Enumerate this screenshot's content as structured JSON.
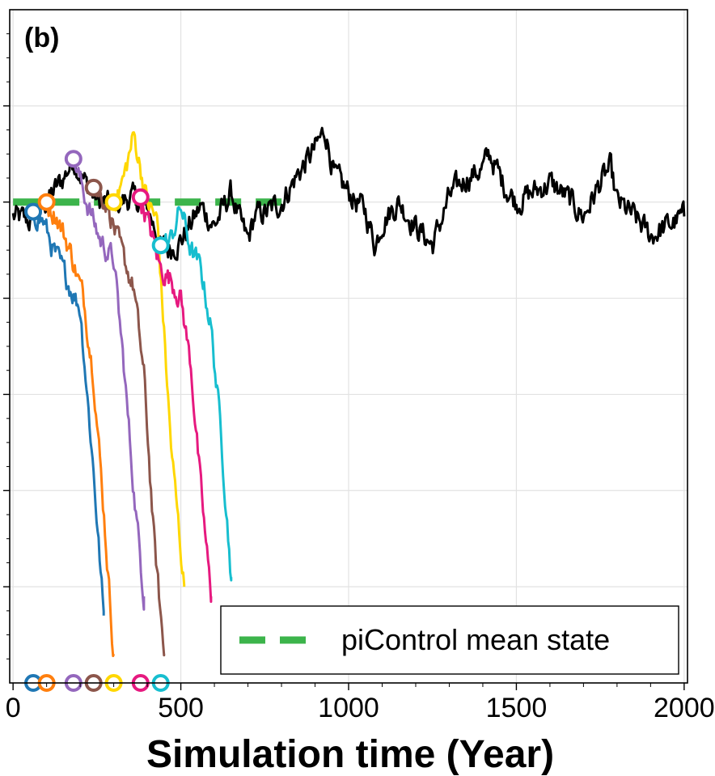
{
  "chart_data": {
    "type": "line",
    "panel_label": "(b)",
    "xlabel": "Simulation time (Year)",
    "ylabel": "",
    "xlim": [
      -10,
      2010
    ],
    "ylim": [
      0,
      7
    ],
    "x_ticks": [
      0,
      500,
      1000,
      1500,
      2000
    ],
    "grid": true,
    "legend": {
      "placement": "bottom-right",
      "entries": [
        {
          "label": "piControl mean state",
          "color": "#3cb44b",
          "style": "dashed"
        }
      ]
    },
    "reference": {
      "name": "piControl mean state",
      "x": [
        0,
        810
      ],
      "y": 5.0,
      "color": "#3cb44b"
    },
    "control_run": {
      "color": "#000000",
      "x": [
        0,
        50,
        100,
        150,
        180,
        230,
        260,
        300,
        350,
        400,
        440,
        460,
        500,
        560,
        600,
        650,
        680,
        700,
        720,
        760,
        800,
        850,
        900,
        930,
        960,
        1000,
        1050,
        1080,
        1100,
        1150,
        1200,
        1250,
        1300,
        1350,
        1400,
        1420,
        1460,
        1500,
        1550,
        1600,
        1650,
        1700,
        1750,
        1780,
        1800,
        1850,
        1900,
        1950,
        2000
      ],
      "y": [
        4.85,
        4.8,
        5.0,
        5.25,
        5.45,
        5.1,
        5.0,
        4.95,
        5.05,
        4.95,
        4.55,
        4.5,
        4.6,
        4.95,
        4.75,
        5.1,
        4.75,
        4.6,
        4.85,
        4.9,
        5.0,
        5.3,
        5.55,
        5.75,
        5.25,
        5.1,
        4.9,
        4.55,
        4.8,
        5.0,
        4.75,
        4.55,
        5.05,
        5.25,
        5.35,
        5.5,
        5.2,
        5.0,
        5.1,
        5.2,
        5.05,
        4.85,
        5.2,
        5.35,
        5.0,
        4.85,
        4.65,
        4.75,
        4.85
      ]
    },
    "series": [
      {
        "color": "#1f77b4",
        "x": [
          60,
          90,
          120,
          160,
          200,
          240,
          270
        ],
        "y": [
          4.9,
          4.8,
          4.5,
          4.2,
          3.9,
          2.2,
          0.7
        ],
        "branch_year": 60
      },
      {
        "color": "#ff7f0e",
        "x": [
          100,
          130,
          170,
          210,
          240,
          270,
          300
        ],
        "y": [
          5.0,
          4.85,
          4.5,
          4.0,
          3.2,
          1.8,
          0.3
        ],
        "branch_year": 100
      },
      {
        "color": "#9467bd",
        "x": [
          180,
          220,
          260,
          300,
          330,
          360,
          390
        ],
        "y": [
          5.45,
          5.0,
          4.6,
          4.4,
          3.3,
          2.0,
          0.9
        ],
        "branch_year": 180
      },
      {
        "color": "#8c564b",
        "x": [
          240,
          280,
          320,
          360,
          390,
          420,
          450
        ],
        "y": [
          5.15,
          5.0,
          4.5,
          4.1,
          3.2,
          1.5,
          0.3
        ],
        "branch_year": 240
      },
      {
        "color": "#ffd700",
        "x": [
          300,
          330,
          360,
          400,
          430,
          470,
          510
        ],
        "y": [
          5.0,
          5.25,
          5.7,
          5.0,
          4.8,
          2.5,
          1.0
        ],
        "branch_year": 300
      },
      {
        "color": "#e6197f",
        "x": [
          380,
          410,
          440,
          470,
          500,
          530,
          560,
          590
        ],
        "y": [
          5.05,
          4.7,
          4.3,
          4.2,
          4.0,
          3.3,
          2.0,
          0.9
        ],
        "branch_year": 380
      },
      {
        "color": "#17becf",
        "x": [
          440,
          470,
          500,
          530,
          560,
          590,
          620,
          650
        ],
        "y": [
          4.55,
          4.6,
          4.95,
          4.5,
          4.3,
          3.7,
          2.6,
          1.1
        ],
        "branch_year": 440
      }
    ]
  }
}
